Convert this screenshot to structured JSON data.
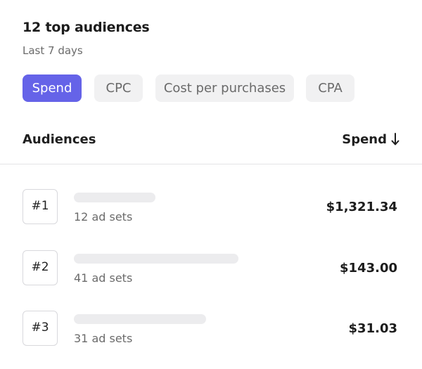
{
  "header": {
    "title": "12 top audiences",
    "subtitle": "Last 7 days"
  },
  "tabs": [
    {
      "label": "Spend",
      "active": true
    },
    {
      "label": "CPC",
      "active": false
    },
    {
      "label": "Cost per purchases",
      "active": false
    },
    {
      "label": "CPA",
      "active": false
    }
  ],
  "table": {
    "col_audiences": "Audiences",
    "col_spend": "Spend",
    "sort_icon": "arrow-down-icon",
    "rows": [
      {
        "rank": "#1",
        "ad_sets": "12 ad sets",
        "amount": "$1,321.34"
      },
      {
        "rank": "#2",
        "ad_sets": "41 ad sets",
        "amount": "$143.00"
      },
      {
        "rank": "#3",
        "ad_sets": "31 ad sets",
        "amount": "$31.03"
      }
    ]
  },
  "colors": {
    "accent": "#6563e8",
    "tab_inactive_bg": "#f1f1f2",
    "skeleton": "#ececee"
  }
}
